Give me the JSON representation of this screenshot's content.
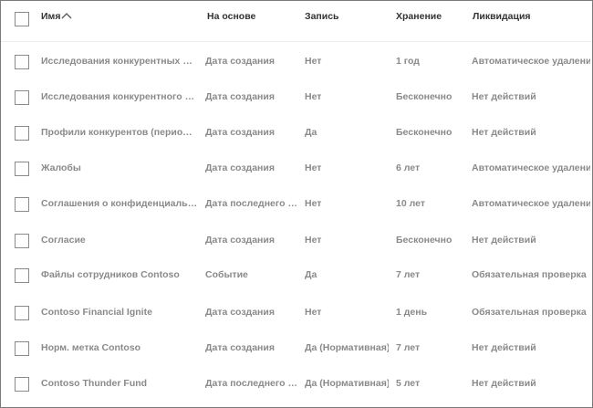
{
  "header": {
    "name": "Имя",
    "base": "На основе",
    "record": "Запись",
    "retention": "Хранение",
    "liquidation": "Ликвидация"
  },
  "rows": [
    {
      "name": "Исследования конкурентных преимуществ",
      "base": "Дата создания",
      "record": "Нет",
      "retention": "1 год",
      "liquidation": "Автоматическое удаление"
    },
    {
      "name": "Исследования конкурентного рынка",
      "base": "Дата создания",
      "record": "Нет",
      "retention": "Бесконечно",
      "liquidation": "Нет действий"
    },
    {
      "name": "Профили конкурентов (периодические)",
      "base": "Дата создания",
      "record": "Да",
      "retention": "Бесконечно",
      "liquidation": "Нет действий"
    },
    {
      "name": "Жалобы",
      "base": "Дата создания",
      "record": "Нет",
      "retention": "6 лет",
      "liquidation": "Автоматическое удаление"
    },
    {
      "name": "Соглашения о конфиденциальности",
      "base": "Дата последнего изменения",
      "record": "Нет",
      "retention": "10 лет",
      "liquidation": "Автоматическое удаление"
    },
    {
      "name": "Согласие",
      "base": "Дата создания",
      "record": "Нет",
      "retention": "Бесконечно",
      "liquidation": "Нет действий"
    },
    {
      "name": "Файлы сотрудников Contoso",
      "base": "Событие",
      "record": "Да",
      "retention": "7 лет",
      "liquidation": "Обязательная проверка"
    },
    {
      "name": "Contoso Financial Ignite",
      "base": "Дата создания",
      "record": "Нет",
      "retention": "1 день",
      "liquidation": "Обязательная проверка"
    },
    {
      "name": "Норм. метка Contoso",
      "base": "Дата создания",
      "record": "Да (Нормативная)",
      "retention": "7 лет",
      "liquidation": "Нет действий"
    },
    {
      "name": "Contoso Thunder Fund",
      "base": "Дата последнего изменения",
      "record": "Да (Нормативная)",
      "retention": "5 лет",
      "liquidation": "Нет действий"
    }
  ]
}
